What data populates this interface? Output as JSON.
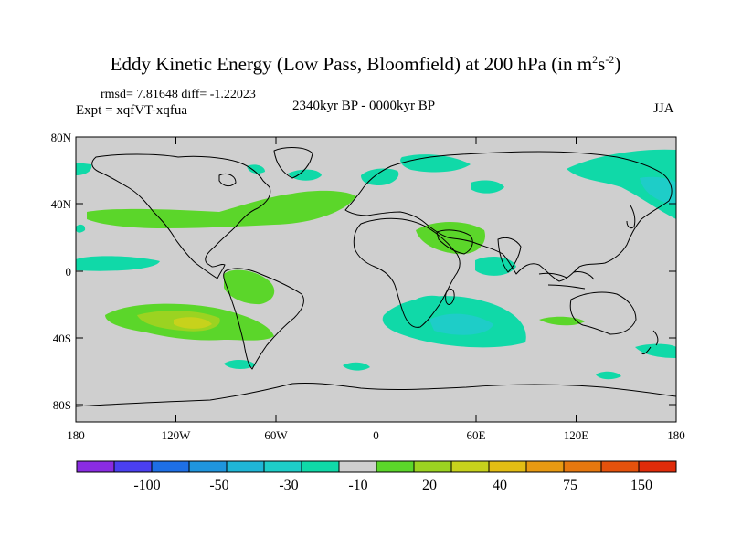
{
  "title": {
    "main": "Eddy Kinetic Energy (Low Pass, Bloomfield) at 200 hPa (in m",
    "sup1": "2",
    "mid": "s",
    "sup2": "-2",
    "end": ")"
  },
  "stats": "rmsd= 7.81648 diff= -1.22023",
  "expt": "Expt = xqfVT-xqfua",
  "period": "2340kyr BP - 0000kyr BP",
  "season": "JJA",
  "lat_labels": [
    "80N",
    "40N",
    "0",
    "40S",
    "80S"
  ],
  "lon_labels": [
    "180",
    "120W",
    "60W",
    "0",
    "60E",
    "120E",
    "180"
  ],
  "colorbar": {
    "colors": [
      "#8a2be2",
      "#4a3ff0",
      "#1e6fe6",
      "#1f95dd",
      "#1fb6d6",
      "#1ecdc8",
      "#10d9a8",
      "#cfcfcf",
      "#5bd62a",
      "#9bd321",
      "#c7d21c",
      "#e3bd14",
      "#e89a12",
      "#e6780f",
      "#e5520c",
      "#e02b0a"
    ],
    "labels": [
      "-100",
      "-50",
      "-30",
      "-10",
      "20",
      "40",
      "75",
      "150"
    ]
  },
  "legend_colors": {
    "land": "#cfcfcf",
    "cyan": "#10d9a8",
    "cyan_dark": "#1ecdc8",
    "green": "#5bd62a",
    "green_light": "#9bd321",
    "yellow": "#c7d21c"
  }
}
